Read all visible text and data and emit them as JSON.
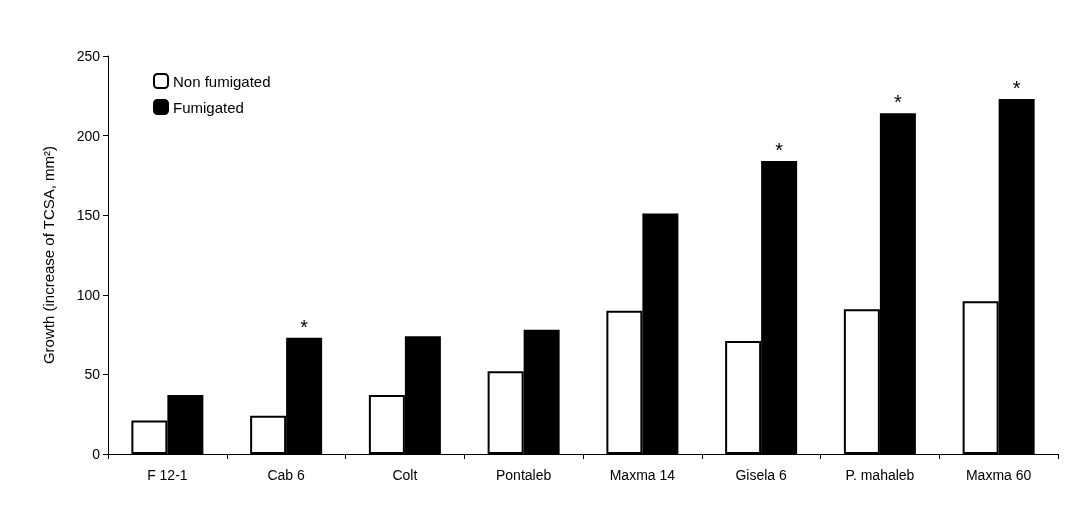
{
  "chart_data": {
    "type": "bar",
    "ylabel": "Growth (increase of TCSA, mm²)",
    "categories": [
      "F 12-1",
      "Cab 6",
      "Colt",
      "Pontaleb",
      "Maxma 14",
      "Gisela 6",
      "P. mahaleb",
      "Maxma 60"
    ],
    "series": [
      {
        "name": "Non fumigated",
        "color": "#ffffff",
        "values": [
          21,
          24,
          37,
          52,
          90,
          71,
          91,
          96
        ]
      },
      {
        "name": "Fumigated",
        "color": "#000000",
        "values": [
          37,
          73,
          74,
          78,
          151,
          184,
          214,
          223
        ]
      }
    ],
    "ylim": [
      0,
      250
    ],
    "yticks": [
      0,
      50,
      100,
      150,
      200,
      250
    ],
    "grid": false,
    "legend": "top left",
    "annotations": [
      {
        "text": "*",
        "x": "Cab 6",
        "y": 73
      },
      {
        "text": "*",
        "x": "Gisela 6",
        "y": 184
      },
      {
        "text": "*",
        "x": "P. mahaleb",
        "y": 214
      },
      {
        "text": "*",
        "x": "Maxma 60",
        "y": 223
      }
    ]
  }
}
